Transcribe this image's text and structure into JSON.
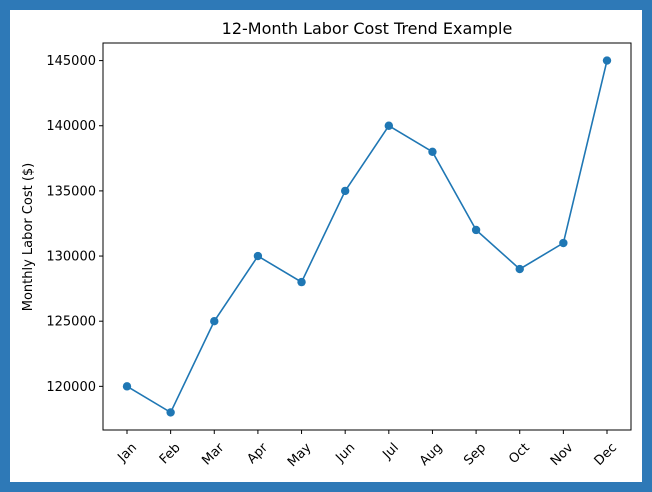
{
  "chart_data": {
    "type": "line",
    "title": "12-Month Labor Cost Trend Example",
    "xlabel": "",
    "ylabel": "Monthly Labor Cost ($)",
    "categories": [
      "Jan",
      "Feb",
      "Mar",
      "Apr",
      "May",
      "Jun",
      "Jul",
      "Aug",
      "Sep",
      "Oct",
      "Nov",
      "Dec"
    ],
    "series": [
      {
        "values": [
          120000,
          118000,
          125000,
          130000,
          128000,
          135000,
          140000,
          138000,
          132000,
          129000,
          131000,
          145000
        ],
        "color": "#1f77b4"
      }
    ],
    "ylim": [
      116650,
      146350
    ],
    "yticks": [
      120000,
      125000,
      130000,
      135000,
      140000,
      145000
    ],
    "ytick_labels": [
      "120000",
      "125000",
      "130000",
      "135000",
      "140000",
      "145000"
    ],
    "grid": false,
    "marker": "circle"
  },
  "colors": {
    "frame_border": "#2e79b7",
    "line": "#1f77b4"
  }
}
